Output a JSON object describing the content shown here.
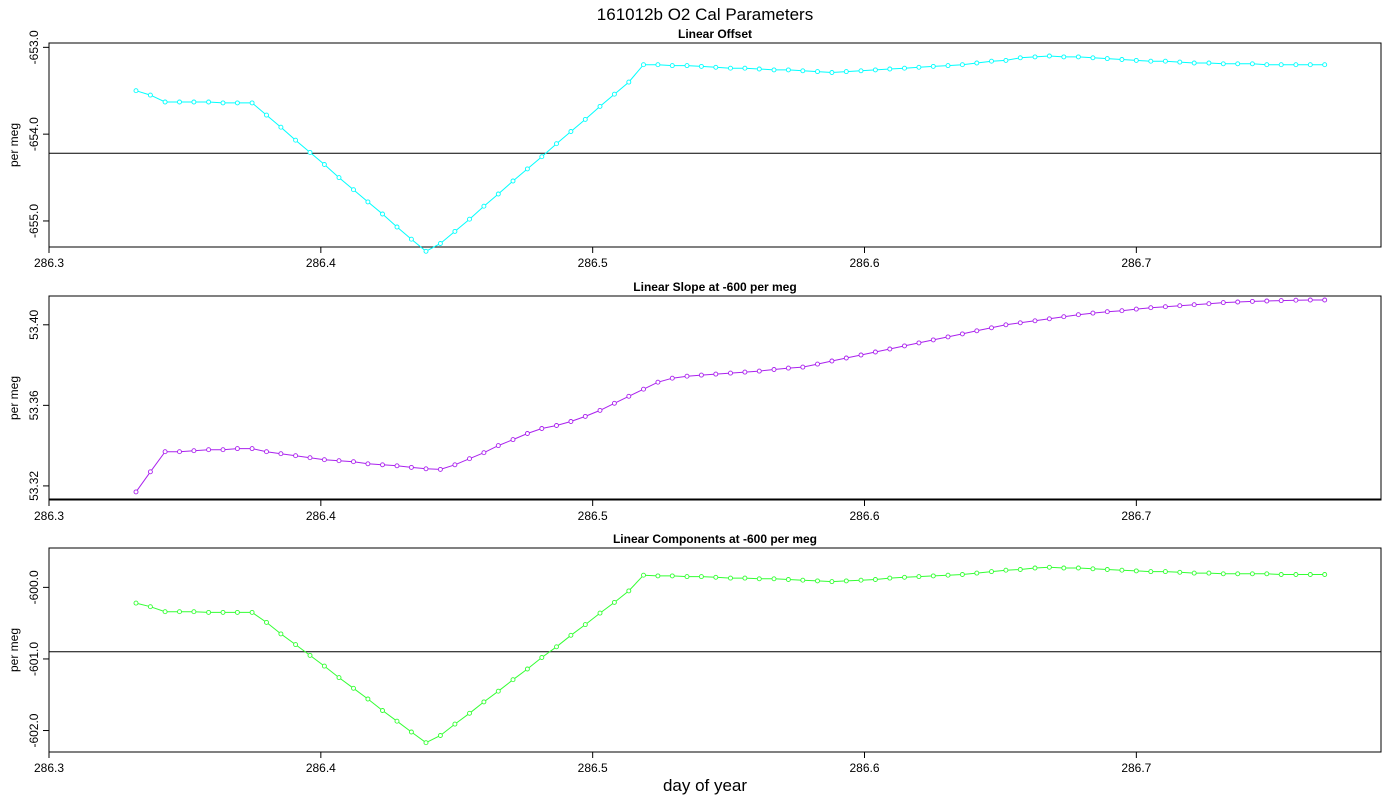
{
  "figure": {
    "title": "161012b   O2 Cal Parameters",
    "xlabel": "day of year"
  },
  "chart_data": [
    {
      "type": "line",
      "title": "Linear Offset",
      "ylabel": "per meg",
      "color": "#00ffff",
      "xlim": [
        286.3,
        286.79
      ],
      "ylim": [
        -655.3,
        -652.95
      ],
      "x_ticks": [
        "286.3",
        "286.4",
        "286.5",
        "286.6",
        "286.7"
      ],
      "y_ticks": [
        "-653.0",
        "-654.0",
        "-655.0"
      ],
      "y_tick_values": [
        -653.0,
        -654.0,
        -655.0
      ],
      "hline": -654.22,
      "x": [
        286.332,
        286.3373,
        286.3427,
        286.348,
        286.3533,
        286.3587,
        286.364,
        286.3693,
        286.3747,
        286.38,
        286.3853,
        286.3907,
        286.396,
        286.4013,
        286.4067,
        286.412,
        286.4173,
        286.4227,
        286.428,
        286.4333,
        286.4387,
        286.444,
        286.4493,
        286.4547,
        286.46,
        286.4653,
        286.4707,
        286.476,
        286.4813,
        286.4867,
        286.492,
        286.4973,
        286.5027,
        286.508,
        286.5133,
        286.5187,
        286.524,
        286.5293,
        286.5347,
        286.54,
        286.5453,
        286.5507,
        286.556,
        286.5613,
        286.5667,
        286.572,
        286.5773,
        286.5827,
        286.588,
        286.5933,
        286.5987,
        286.604,
        286.6093,
        286.6147,
        286.62,
        286.6253,
        286.6307,
        286.636,
        286.6413,
        286.6467,
        286.652,
        286.6573,
        286.6627,
        286.668,
        286.6733,
        286.6787,
        286.684,
        286.6893,
        286.6947,
        286.7,
        286.7053,
        286.7107,
        286.716,
        286.7213,
        286.7267,
        286.732,
        286.7373,
        286.7427,
        286.748,
        286.7533,
        286.7587,
        286.764,
        286.7693
      ],
      "y": [
        -653.5,
        -653.55,
        -653.63,
        -653.63,
        -653.63,
        -653.63,
        -653.64,
        -653.64,
        -653.64,
        -653.78,
        -653.92,
        -654.07,
        -654.21,
        -654.35,
        -654.5,
        -654.64,
        -654.78,
        -654.92,
        -655.07,
        -655.21,
        -655.35,
        -655.26,
        -655.12,
        -654.98,
        -654.83,
        -654.69,
        -654.54,
        -654.4,
        -654.26,
        -654.11,
        -653.97,
        -653.83,
        -653.68,
        -653.54,
        -653.4,
        -653.2,
        -653.2,
        -653.21,
        -653.21,
        -653.22,
        -653.23,
        -653.24,
        -653.24,
        -653.25,
        -653.26,
        -653.26,
        -653.27,
        -653.28,
        -653.29,
        -653.28,
        -653.27,
        -653.26,
        -653.25,
        -653.24,
        -653.23,
        -653.22,
        -653.21,
        -653.2,
        -653.18,
        -653.16,
        -653.15,
        -653.12,
        -653.11,
        -653.1,
        -653.11,
        -653.11,
        -653.12,
        -653.13,
        -653.14,
        -653.15,
        -653.16,
        -653.16,
        -653.17,
        -653.18,
        -653.18,
        -653.19,
        -653.19,
        -653.19,
        -653.2,
        -653.2,
        -653.2,
        -653.2,
        -653.2
      ]
    },
    {
      "type": "line",
      "title": "Linear Slope at -600 per meg",
      "ylabel": "per meg",
      "color": "#aa22ee",
      "xlim": [
        286.3,
        286.79
      ],
      "ylim": [
        53.313,
        53.4143
      ],
      "x_ticks": [
        "286.3",
        "286.4",
        "286.5",
        "286.6",
        "286.7"
      ],
      "y_ticks": [
        "53.32",
        "53.36",
        "53.40"
      ],
      "y_tick_values": [
        53.32,
        53.36,
        53.4
      ],
      "hline": 53.3135,
      "x": [
        286.332,
        286.3373,
        286.3427,
        286.348,
        286.3533,
        286.3587,
        286.364,
        286.3693,
        286.3747,
        286.38,
        286.3853,
        286.3907,
        286.396,
        286.4013,
        286.4067,
        286.412,
        286.4173,
        286.4227,
        286.428,
        286.4333,
        286.4387,
        286.444,
        286.4493,
        286.4547,
        286.46,
        286.4653,
        286.4707,
        286.476,
        286.4813,
        286.4867,
        286.492,
        286.4973,
        286.5027,
        286.508,
        286.5133,
        286.5187,
        286.524,
        286.5293,
        286.5347,
        286.54,
        286.5453,
        286.5507,
        286.556,
        286.5613,
        286.5667,
        286.572,
        286.5773,
        286.5827,
        286.588,
        286.5933,
        286.5987,
        286.604,
        286.6093,
        286.6147,
        286.62,
        286.6253,
        286.6307,
        286.636,
        286.6413,
        286.6467,
        286.652,
        286.6573,
        286.6627,
        286.668,
        286.6733,
        286.6787,
        286.684,
        286.6893,
        286.6947,
        286.7,
        286.7053,
        286.7107,
        286.716,
        286.7213,
        286.7267,
        286.732,
        286.7373,
        286.7427,
        286.748,
        286.7533,
        286.7587,
        286.764,
        286.7693
      ],
      "y": [
        53.317,
        53.327,
        53.337,
        53.337,
        53.3375,
        53.338,
        53.338,
        53.3385,
        53.3385,
        53.337,
        53.336,
        53.335,
        53.334,
        53.333,
        53.3325,
        53.332,
        53.331,
        53.3305,
        53.33,
        53.3292,
        53.3285,
        53.3282,
        53.3305,
        53.3335,
        53.3365,
        53.34,
        53.343,
        53.346,
        53.3485,
        53.35,
        53.352,
        53.3545,
        53.3575,
        53.361,
        53.3645,
        53.368,
        53.3715,
        53.3735,
        53.3745,
        53.375,
        53.3755,
        53.376,
        53.3765,
        53.377,
        53.3778,
        53.3785,
        53.379,
        53.3805,
        53.382,
        53.3835,
        53.385,
        53.3865,
        53.388,
        53.3895,
        53.391,
        53.3925,
        53.394,
        53.3955,
        53.397,
        53.3985,
        53.4,
        53.401,
        53.402,
        53.403,
        53.404,
        53.405,
        53.4058,
        53.4065,
        53.407,
        53.4078,
        53.4085,
        53.409,
        53.4095,
        53.41,
        53.4105,
        53.411,
        53.4113,
        53.4116,
        53.4118,
        53.412,
        53.4122,
        53.4123,
        53.4123
      ]
    },
    {
      "type": "line",
      "title": "Linear Components at -600 per meg",
      "ylabel": "per meg",
      "color": "#33ff33",
      "xlim": [
        286.3,
        286.79
      ],
      "ylim": [
        -602.3,
        -599.45
      ],
      "x_ticks": [
        "286.3",
        "286.4",
        "286.5",
        "286.6",
        "286.7"
      ],
      "y_ticks": [
        "-600.0",
        "-601.0",
        "-602.0"
      ],
      "y_tick_values": [
        -600.0,
        -601.0,
        -602.0
      ],
      "hline": -600.9,
      "x": [
        286.332,
        286.3373,
        286.3427,
        286.348,
        286.3533,
        286.3587,
        286.364,
        286.3693,
        286.3747,
        286.38,
        286.3853,
        286.3907,
        286.396,
        286.4013,
        286.4067,
        286.412,
        286.4173,
        286.4227,
        286.428,
        286.4333,
        286.4387,
        286.444,
        286.4493,
        286.4547,
        286.46,
        286.4653,
        286.4707,
        286.476,
        286.4813,
        286.4867,
        286.492,
        286.4973,
        286.5027,
        286.508,
        286.5133,
        286.5187,
        286.524,
        286.5293,
        286.5347,
        286.54,
        286.5453,
        286.5507,
        286.556,
        286.5613,
        286.5667,
        286.572,
        286.5773,
        286.5827,
        286.588,
        286.5933,
        286.5987,
        286.604,
        286.6093,
        286.6147,
        286.62,
        286.6253,
        286.6307,
        286.636,
        286.6413,
        286.6467,
        286.652,
        286.6573,
        286.6627,
        286.668,
        286.6733,
        286.6787,
        286.684,
        286.6893,
        286.6947,
        286.7,
        286.7053,
        286.7107,
        286.716,
        286.7213,
        286.7267,
        286.732,
        286.7373,
        286.7427,
        286.748,
        286.7533,
        286.7587,
        286.764,
        286.7693
      ],
      "y": [
        -600.22,
        -600.27,
        -600.34,
        -600.34,
        -600.34,
        -600.35,
        -600.35,
        -600.35,
        -600.35,
        -600.49,
        -600.65,
        -600.8,
        -600.95,
        -601.1,
        -601.26,
        -601.41,
        -601.56,
        -601.72,
        -601.87,
        -602.02,
        -602.17,
        -602.07,
        -601.91,
        -601.76,
        -601.6,
        -601.45,
        -601.29,
        -601.14,
        -600.98,
        -600.83,
        -600.67,
        -600.52,
        -600.36,
        -600.21,
        -600.05,
        -599.83,
        -599.84,
        -599.84,
        -599.85,
        -599.85,
        -599.86,
        -599.87,
        -599.87,
        -599.88,
        -599.88,
        -599.89,
        -599.9,
        -599.91,
        -599.92,
        -599.91,
        -599.9,
        -599.89,
        -599.87,
        -599.86,
        -599.85,
        -599.84,
        -599.83,
        -599.82,
        -599.8,
        -599.78,
        -599.76,
        -599.75,
        -599.73,
        -599.72,
        -599.73,
        -599.73,
        -599.74,
        -599.75,
        -599.76,
        -599.77,
        -599.78,
        -599.78,
        -599.79,
        -599.8,
        -599.8,
        -599.81,
        -599.81,
        -599.81,
        -599.81,
        -599.82,
        -599.82,
        -599.82,
        -599.82
      ]
    }
  ]
}
